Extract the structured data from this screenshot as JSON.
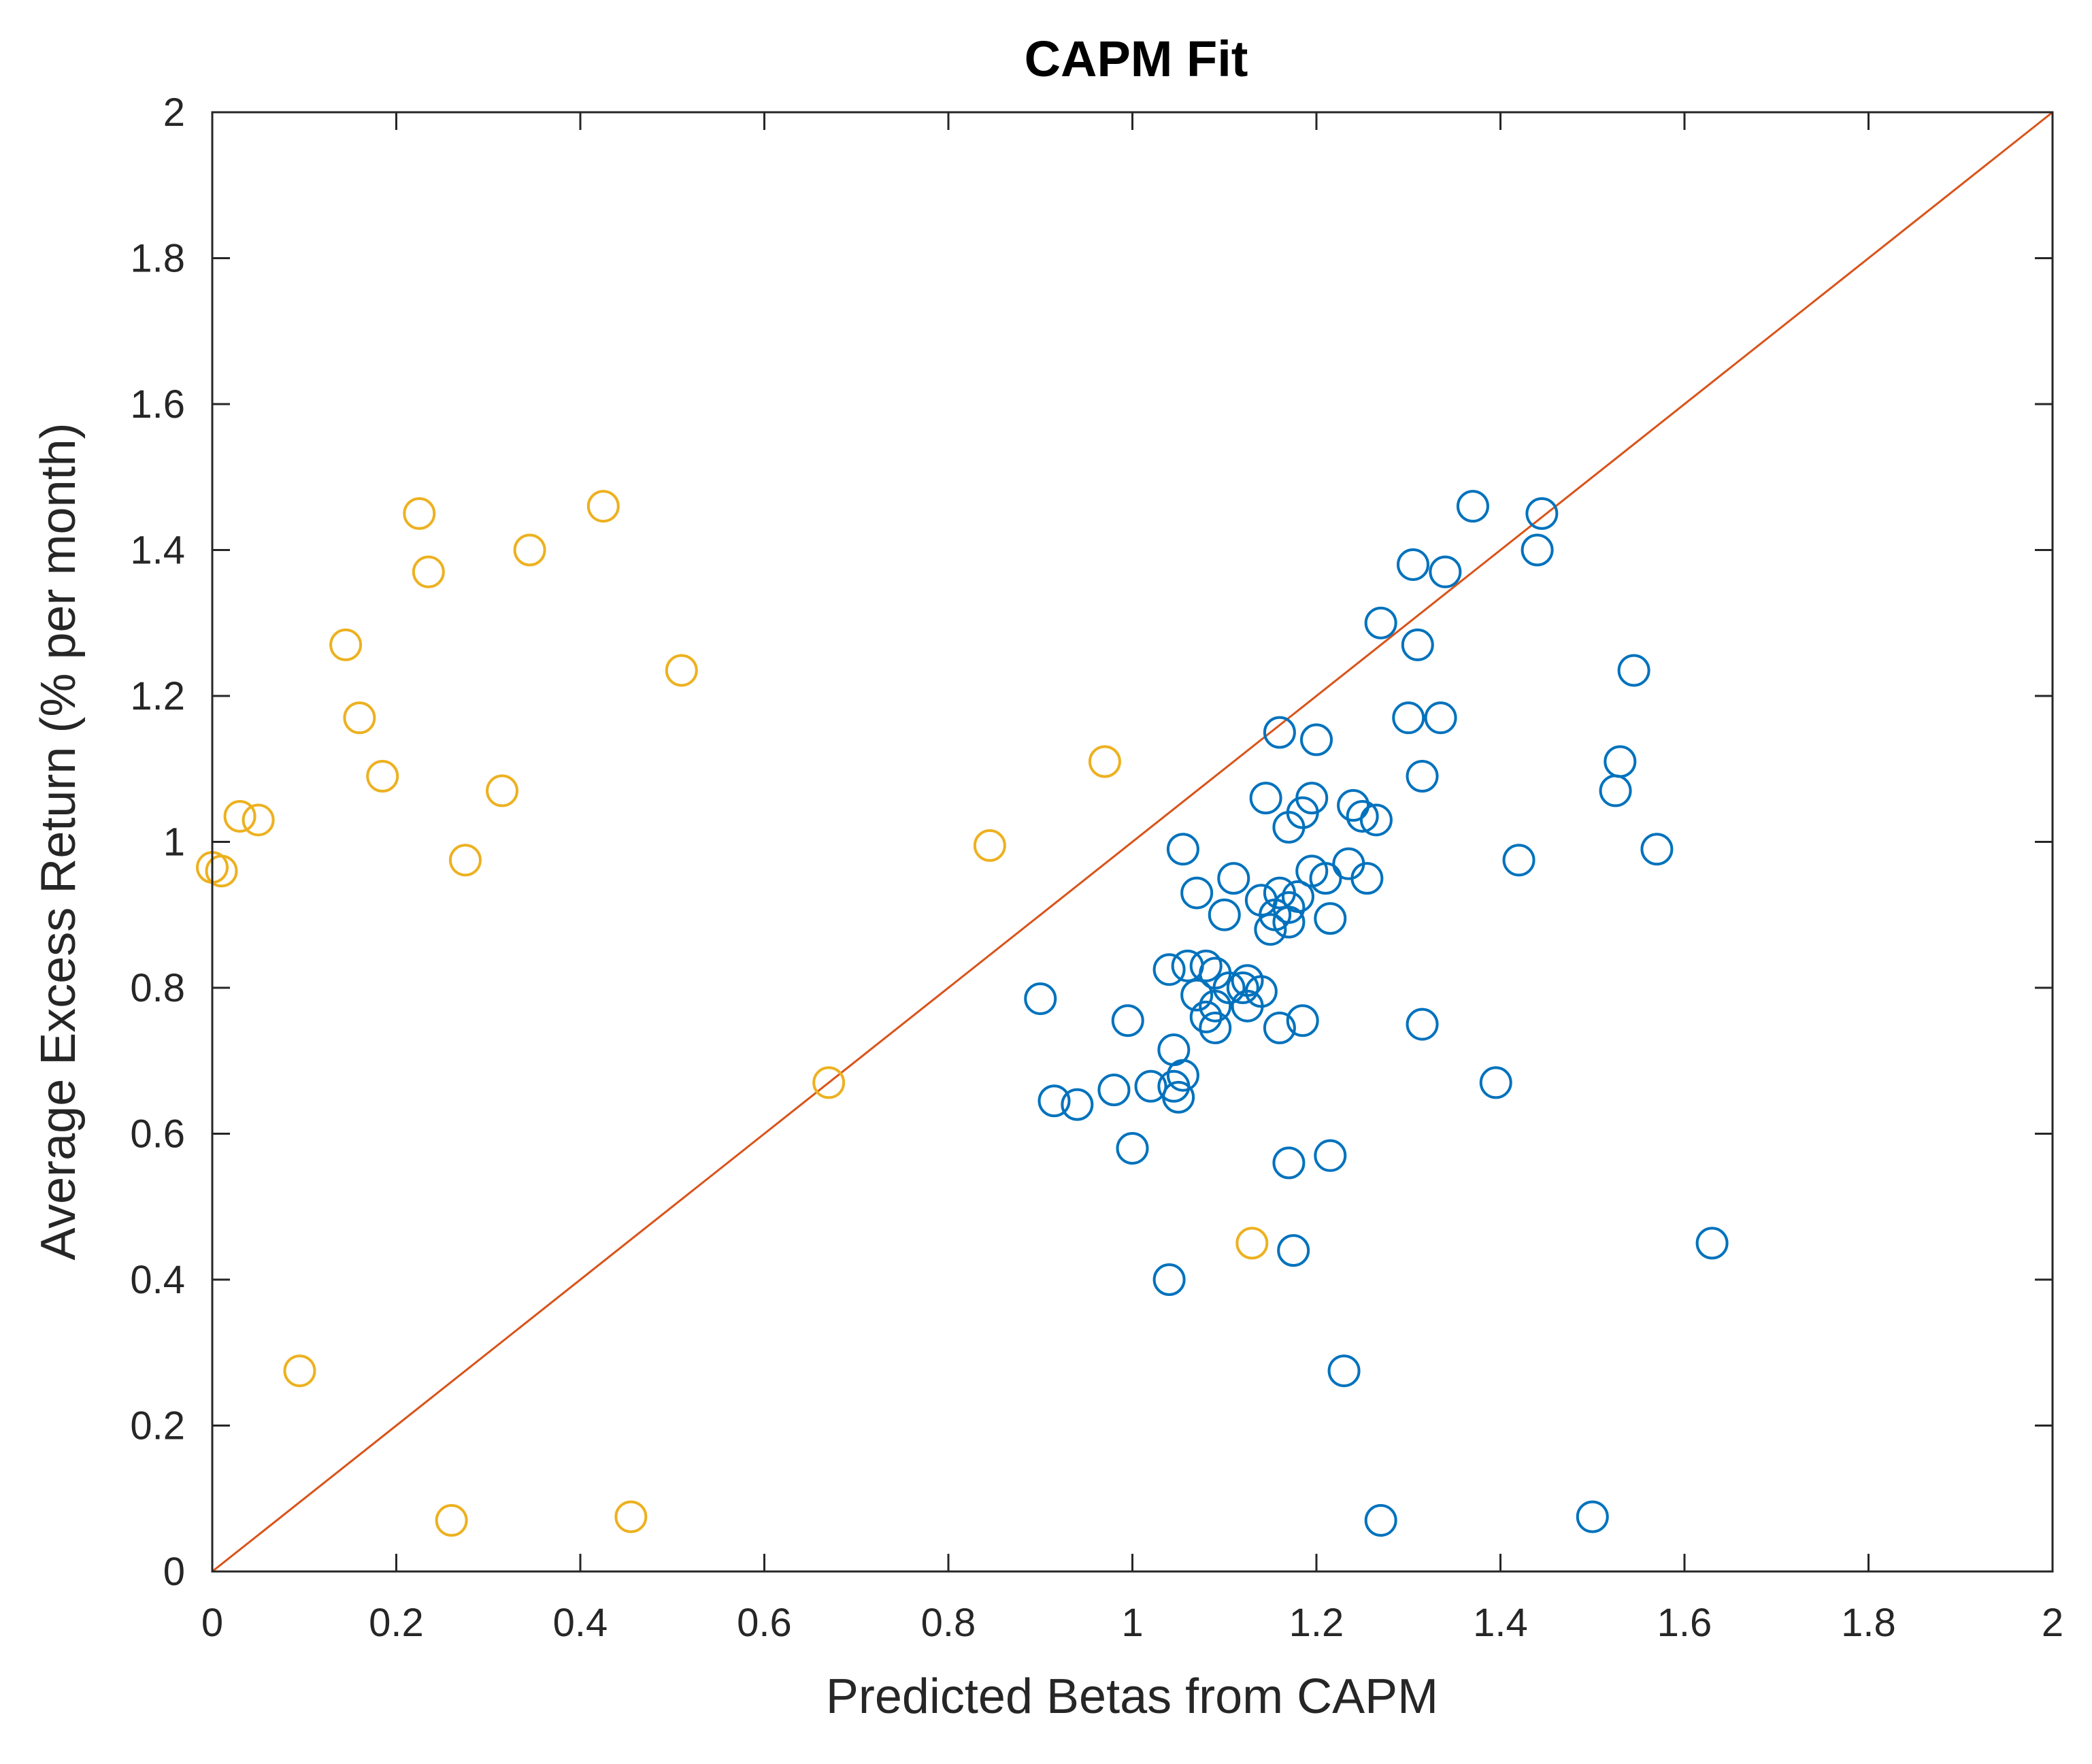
{
  "chart_data": {
    "type": "scatter",
    "title": "CAPM Fit",
    "xlabel": "Predicted Betas from CAPM",
    "ylabel": "Average Excess Return (% per month)",
    "xlim": [
      0,
      2
    ],
    "ylim": [
      0,
      2
    ],
    "xticks": [
      0,
      0.2,
      0.4,
      0.6,
      0.8,
      1,
      1.2,
      1.4,
      1.6,
      1.8,
      2
    ],
    "yticks": [
      0,
      0.2,
      0.4,
      0.6,
      0.8,
      1,
      1.2,
      1.4,
      1.6,
      1.8,
      2
    ],
    "xtick_labels": [
      "0",
      "0.2",
      "0.4",
      "0.6",
      "0.8",
      "1",
      "1.2",
      "1.4",
      "1.6",
      "1.8",
      "2"
    ],
    "ytick_labels": [
      "0",
      "0.2",
      "0.4",
      "0.6",
      "0.8",
      "1",
      "1.2",
      "1.4",
      "1.6",
      "1.8",
      "2"
    ],
    "grid": false,
    "reference_line": {
      "from": [
        0,
        0
      ],
      "to": [
        2,
        2
      ],
      "color": "#D95319"
    },
    "series": [
      {
        "name": "blue",
        "color": "#0072BD",
        "marker": "open-circle",
        "points": [
          [
            1.37,
            1.46
          ],
          [
            1.445,
            1.45
          ],
          [
            1.44,
            1.4
          ],
          [
            1.305,
            1.38
          ],
          [
            1.34,
            1.37
          ],
          [
            1.27,
            1.3
          ],
          [
            1.31,
            1.27
          ],
          [
            1.545,
            1.235
          ],
          [
            1.3,
            1.17
          ],
          [
            1.335,
            1.17
          ],
          [
            1.16,
            1.15
          ],
          [
            1.2,
            1.14
          ],
          [
            1.53,
            1.11
          ],
          [
            1.315,
            1.09
          ],
          [
            1.525,
            1.07
          ],
          [
            1.145,
            1.06
          ],
          [
            1.195,
            1.06
          ],
          [
            1.24,
            1.05
          ],
          [
            1.185,
            1.04
          ],
          [
            1.25,
            1.035
          ],
          [
            1.265,
            1.03
          ],
          [
            1.17,
            1.02
          ],
          [
            1.055,
            0.99
          ],
          [
            1.57,
            0.99
          ],
          [
            1.235,
            0.97
          ],
          [
            1.42,
            0.975
          ],
          [
            1.195,
            0.96
          ],
          [
            1.21,
            0.95
          ],
          [
            1.255,
            0.95
          ],
          [
            1.11,
            0.95
          ],
          [
            1.07,
            0.93
          ],
          [
            1.16,
            0.93
          ],
          [
            1.18,
            0.925
          ],
          [
            1.14,
            0.92
          ],
          [
            1.17,
            0.91
          ],
          [
            1.155,
            0.9
          ],
          [
            1.1,
            0.9
          ],
          [
            1.215,
            0.895
          ],
          [
            1.17,
            0.89
          ],
          [
            1.15,
            0.88
          ],
          [
            1.04,
            0.825
          ],
          [
            1.06,
            0.83
          ],
          [
            1.08,
            0.83
          ],
          [
            1.09,
            0.82
          ],
          [
            1.125,
            0.81
          ],
          [
            1.12,
            0.8
          ],
          [
            1.105,
            0.8
          ],
          [
            1.14,
            0.795
          ],
          [
            1.07,
            0.79
          ],
          [
            0.9,
            0.785
          ],
          [
            1.09,
            0.775
          ],
          [
            1.125,
            0.775
          ],
          [
            1.08,
            0.76
          ],
          [
            1.185,
            0.755
          ],
          [
            0.995,
            0.755
          ],
          [
            1.16,
            0.745
          ],
          [
            1.09,
            0.745
          ],
          [
            1.315,
            0.75
          ],
          [
            1.045,
            0.715
          ],
          [
            1.055,
            0.68
          ],
          [
            1.395,
            0.67
          ],
          [
            1.045,
            0.665
          ],
          [
            1.02,
            0.665
          ],
          [
            0.98,
            0.66
          ],
          [
            1.05,
            0.65
          ],
          [
            0.915,
            0.645
          ],
          [
            0.94,
            0.64
          ],
          [
            1.0,
            0.58
          ],
          [
            1.215,
            0.57
          ],
          [
            1.17,
            0.56
          ],
          [
            1.63,
            0.45
          ],
          [
            1.175,
            0.44
          ],
          [
            1.04,
            0.4
          ],
          [
            1.23,
            0.275
          ],
          [
            1.5,
            0.075
          ],
          [
            1.27,
            0.07
          ]
        ]
      },
      {
        "name": "orange",
        "color": "#EDB120",
        "marker": "open-circle",
        "points": [
          [
            0.425,
            1.46
          ],
          [
            0.225,
            1.45
          ],
          [
            0.345,
            1.4
          ],
          [
            0.235,
            1.37
          ],
          [
            0.145,
            1.27
          ],
          [
            0.51,
            1.235
          ],
          [
            0.16,
            1.17
          ],
          [
            0.97,
            1.11
          ],
          [
            0.185,
            1.09
          ],
          [
            0.315,
            1.07
          ],
          [
            0.03,
            1.035
          ],
          [
            0.05,
            1.03
          ],
          [
            0.845,
            0.995
          ],
          [
            0.275,
            0.975
          ],
          [
            0.0,
            0.965
          ],
          [
            0.01,
            0.96
          ],
          [
            0.67,
            0.67
          ],
          [
            1.13,
            0.45
          ],
          [
            0.095,
            0.275
          ],
          [
            0.26,
            0.07
          ],
          [
            0.455,
            0.075
          ]
        ]
      }
    ]
  }
}
